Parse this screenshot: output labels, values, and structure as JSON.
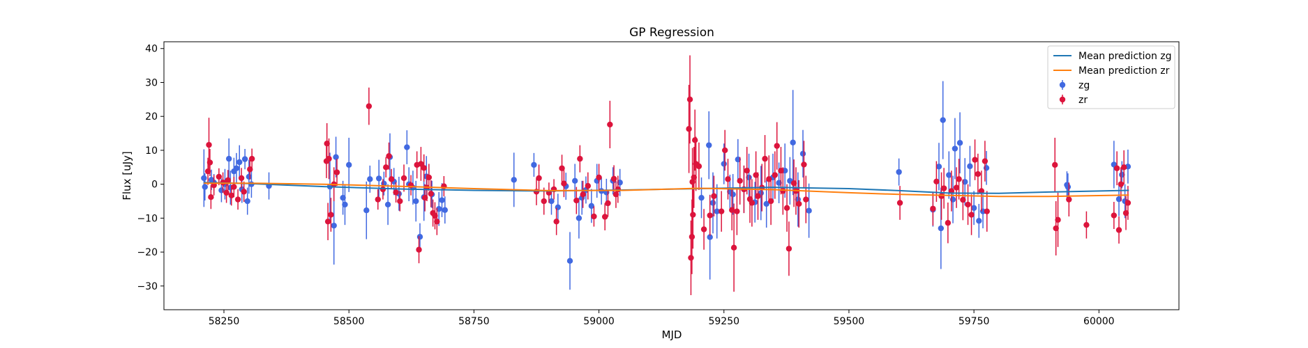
{
  "chart_data": {
    "type": "scatter",
    "title": "GP Regression",
    "xlabel": "MJD",
    "ylabel": "Flux [uJy]",
    "xlim": [
      58130,
      60160
    ],
    "ylim": [
      -37,
      42
    ],
    "xticks": [
      58250,
      58500,
      58750,
      59000,
      59250,
      59500,
      59750,
      60000
    ],
    "xtick_labels": [
      "58250",
      "58500",
      "58750",
      "59000",
      "59250",
      "59500",
      "59750",
      "60000"
    ],
    "yticks": [
      -30,
      -20,
      -10,
      0,
      10,
      20,
      30,
      40
    ],
    "ytick_labels": [
      "−30",
      "−20",
      "−10",
      "0",
      "10",
      "20",
      "30",
      "40"
    ],
    "grid": false,
    "legend_position": "top-right",
    "legend": [
      {
        "label": "Mean prediction zg",
        "kind": "line",
        "color": "#1f77b4"
      },
      {
        "label": "Mean prediction zr",
        "kind": "line",
        "color": "#ff7f0e"
      },
      {
        "label": "zg",
        "kind": "errorbar",
        "color": "#4169e1"
      },
      {
        "label": "zr",
        "kind": "errorbar",
        "color": "#dc143c"
      }
    ],
    "lines": [
      {
        "name": "Mean prediction zg",
        "color": "#1f77b4",
        "x": [
          58210,
          58300,
          58450,
          58600,
          58750,
          58900,
          59050,
          59200,
          59350,
          59500,
          59600,
          59700,
          59800,
          59900,
          60060
        ],
        "y": [
          0.5,
          0.2,
          -0.7,
          -1.4,
          -1.8,
          -2.0,
          -1.7,
          -1.3,
          -0.9,
          -1.3,
          -1.9,
          -2.6,
          -2.7,
          -2.3,
          -1.8
        ]
      },
      {
        "name": "Mean prediction zr",
        "color": "#ff7f0e",
        "x": [
          58210,
          58300,
          58450,
          58600,
          58750,
          58900,
          59050,
          59200,
          59350,
          59500,
          59600,
          59700,
          59800,
          59900,
          60060
        ],
        "y": [
          0.3,
          0.3,
          0.0,
          -0.6,
          -1.3,
          -1.9,
          -1.8,
          -1.2,
          -1.6,
          -2.5,
          -3.0,
          -3.3,
          -3.6,
          -3.6,
          -3.2
        ]
      }
    ],
    "series": [
      {
        "name": "zg",
        "color": "#4169e1",
        "x": [
          58210,
          58212,
          58225,
          58230,
          58245,
          58252,
          58260,
          58263,
          58270,
          58275,
          58281,
          58286,
          58292,
          58297,
          58300,
          58305,
          58340,
          58462,
          58470,
          58474,
          58488,
          58492,
          58500,
          58535,
          58542,
          58560,
          58570,
          58578,
          58582,
          58590,
          58600,
          58616,
          58620,
          58628,
          58634,
          58642,
          58650,
          58655,
          58666,
          58680,
          58686,
          58692,
          58830,
          58870,
          58905,
          58918,
          58934,
          58942,
          58952,
          58960,
          58966,
          58974,
          58985,
          58996,
          59005,
          59015,
          59028,
          59042,
          59205,
          59220,
          59222,
          59228,
          59236,
          59250,
          59262,
          59268,
          59278,
          59290,
          59300,
          59312,
          59324,
          59335,
          59348,
          59360,
          59372,
          59382,
          59388,
          59398,
          59408,
          59420,
          59600,
          59668,
          59680,
          59684,
          59688,
          59700,
          59708,
          59712,
          59722,
          59732,
          59742,
          59750,
          59760,
          59768,
          59775,
          59936,
          59938,
          60030,
          60040,
          60046,
          60052,
          60058
        ],
        "y": [
          1.8,
          -0.8,
          1.3,
          0.5,
          -1.8,
          0.0,
          7.5,
          -1.0,
          3.8,
          4.7,
          6.5,
          -1.5,
          7.4,
          -5.0,
          2.2,
          0.0,
          -0.5,
          -0.7,
          -12.2,
          8.0,
          -4.0,
          -6.0,
          5.7,
          -7.7,
          1.5,
          1.7,
          0.2,
          -6.0,
          8.0,
          0.8,
          -2.8,
          10.9,
          0.0,
          -1.0,
          -5.0,
          -15.5,
          -3.8,
          2.3,
          -3.0,
          -7.3,
          -4.7,
          -7.6,
          1.3,
          5.7,
          -5.0,
          -6.8,
          -0.6,
          -22.6,
          1.0,
          -10.0,
          -4.0,
          -1.7,
          -6.4,
          1.0,
          -2.0,
          -2.4,
          1.0,
          0.5,
          -4.0,
          11.5,
          -15.6,
          -5.5,
          -8.0,
          6.0,
          -2.2,
          -3.0,
          7.3,
          -1.5,
          2.0,
          -5.3,
          -2.6,
          -5.8,
          2.0,
          0.4,
          4.0,
          1.0,
          12.3,
          -4.5,
          9.0,
          -7.8,
          3.6,
          -7.5,
          5.2,
          -13.0,
          18.9,
          2.7,
          -4.5,
          10.5,
          12.2,
          0.7,
          5.3,
          -7.0,
          -10.8,
          -8.0,
          4.8,
          -0.2,
          -0.8,
          5.8,
          -4.4,
          2.8,
          -5.0,
          5.2
        ],
        "err": [
          8.5,
          4.0,
          3.0,
          2.5,
          3.5,
          4.5,
          6.0,
          5.0,
          4.0,
          4.5,
          5.0,
          4.0,
          3.0,
          4.0,
          5.0,
          4.0,
          4.0,
          10.0,
          11.5,
          6.0,
          5.0,
          6.0,
          8.0,
          8.5,
          4.0,
          5.5,
          3.5,
          6.0,
          7.0,
          4.0,
          5.0,
          5.0,
          5.0,
          5.0,
          6.0,
          4.0,
          7.0,
          6.0,
          4.0,
          5.0,
          5.0,
          4.0,
          8.0,
          3.5,
          4.0,
          4.0,
          4.0,
          8.5,
          5.0,
          6.0,
          5.0,
          4.0,
          5.0,
          5.0,
          4.0,
          4.0,
          4.0,
          4.0,
          6.0,
          10.0,
          12.5,
          9.0,
          8.0,
          6.0,
          5.0,
          6.0,
          6.0,
          7.0,
          7.0,
          6.0,
          8.0,
          7.0,
          7.0,
          6.0,
          8.0,
          7.0,
          15.5,
          8.0,
          7.0,
          8.0,
          4.0,
          5.0,
          7.0,
          12.0,
          11.5,
          7.0,
          7.0,
          9.0,
          9.0,
          7.0,
          6.0,
          5.0,
          5.0,
          5.0,
          5.0,
          4.0,
          4.0,
          7.0,
          5.0,
          4.0,
          5.0,
          5.0
        ]
      },
      {
        "name": "zr",
        "color": "#dc143c",
        "x": [
          58218,
          58220,
          58222,
          58224,
          58230,
          58240,
          58248,
          58255,
          58258,
          58265,
          58270,
          58278,
          58285,
          58290,
          58302,
          58306,
          58455,
          58456,
          58458,
          58460,
          58464,
          58470,
          58476,
          58540,
          58558,
          58568,
          58574,
          58580,
          58585,
          58594,
          58602,
          58610,
          58624,
          58636,
          58640,
          58644,
          58650,
          58652,
          58656,
          58660,
          58664,
          58668,
          58672,
          58676,
          58690,
          58875,
          58880,
          58890,
          58900,
          58910,
          58915,
          58926,
          58930,
          58955,
          58962,
          58968,
          58978,
          58990,
          59000,
          59012,
          59018,
          59022,
          59030,
          59034,
          59038,
          59180,
          59182,
          59184,
          59186,
          59187,
          59188,
          59190,
          59192,
          59194,
          59200,
          59210,
          59222,
          59230,
          59245,
          59252,
          59258,
          59266,
          59270,
          59276,
          59282,
          59290,
          59296,
          59302,
          59306,
          59314,
          59318,
          59326,
          59332,
          59340,
          59344,
          59352,
          59356,
          59364,
          59368,
          59376,
          59380,
          59390,
          59394,
          59400,
          59410,
          59414,
          59602,
          59668,
          59675,
          59685,
          59690,
          59698,
          59705,
          59715,
          59720,
          59728,
          59738,
          59745,
          59752,
          59758,
          59765,
          59772,
          59776,
          59912,
          59914,
          59918,
          59940,
          59975,
          60030,
          60036,
          60040,
          60044,
          60050,
          60054,
          60058
        ],
        "y": [
          3.8,
          11.6,
          6.4,
          -3.8,
          -0.3,
          2.2,
          0.5,
          -2.5,
          1.2,
          -3.3,
          -0.8,
          -4.5,
          1.8,
          -2.2,
          4.4,
          7.5,
          6.8,
          12.0,
          -11.0,
          7.5,
          -9.0,
          0.0,
          3.5,
          23.0,
          -4.5,
          -1.5,
          5.0,
          8.3,
          1.5,
          -2.4,
          -5.0,
          1.8,
          -0.3,
          5.7,
          -19.3,
          6.0,
          4.8,
          -4.0,
          -1.0,
          2.0,
          -2.8,
          -8.5,
          -9.3,
          -11.0,
          -0.6,
          -2.2,
          1.8,
          -5.0,
          -2.5,
          -1.5,
          -11.0,
          4.7,
          0.2,
          -4.8,
          7.5,
          -3.0,
          -0.5,
          -9.5,
          2.0,
          -9.6,
          -5.6,
          17.6,
          1.6,
          -3.0,
          -1.5,
          16.3,
          25.0,
          -21.7,
          -15.5,
          0.7,
          -9.0,
          2.0,
          13.0,
          6.0,
          5.3,
          -13.3,
          -9.2,
          -3.5,
          -8.0,
          10.0,
          1.5,
          -7.6,
          -18.7,
          -8.0,
          1.0,
          -1.5,
          4.0,
          -4.4,
          -5.5,
          2.7,
          -3.5,
          -1.0,
          7.5,
          1.5,
          -5.0,
          2.7,
          11.3,
          4.0,
          -2.0,
          -7.0,
          -19.0,
          0.3,
          -2.0,
          -5.8,
          5.8,
          -4.5,
          -5.5,
          -7.2,
          0.8,
          -3.5,
          -1.2,
          -11.4,
          -2.0,
          -1.0,
          1.5,
          -4.6,
          -6.0,
          -9.0,
          7.2,
          3.0,
          -2.0,
          6.8,
          -8.0,
          5.7,
          -13.0,
          -10.5,
          -4.5,
          -12.0,
          -9.2,
          4.7,
          -13.5,
          0.0,
          5.0,
          -8.5,
          -5.5
        ],
        "err": [
          4.0,
          8.0,
          4.0,
          3.5,
          3.0,
          2.5,
          3.0,
          3.0,
          3.0,
          3.0,
          3.0,
          3.0,
          3.0,
          3.0,
          3.0,
          3.0,
          5.0,
          6.0,
          5.5,
          6.0,
          5.0,
          5.0,
          4.0,
          5.5,
          3.0,
          3.0,
          3.0,
          4.0,
          3.0,
          3.0,
          3.0,
          4.0,
          3.0,
          4.0,
          4.0,
          5.0,
          4.0,
          4.0,
          4.0,
          4.0,
          4.0,
          4.0,
          4.0,
          4.0,
          3.0,
          4.0,
          4.0,
          4.0,
          3.0,
          3.0,
          4.0,
          4.0,
          4.0,
          4.0,
          4.0,
          4.0,
          4.0,
          3.0,
          4.0,
          4.0,
          4.0,
          7.0,
          4.0,
          4.0,
          4.0,
          13.0,
          13.0,
          11.0,
          11.0,
          10.0,
          10.0,
          9.0,
          9.0,
          8.0,
          7.0,
          6.0,
          6.0,
          6.0,
          6.0,
          6.0,
          6.0,
          6.0,
          13.0,
          7.0,
          7.0,
          7.0,
          7.0,
          7.0,
          7.0,
          7.0,
          7.0,
          7.0,
          7.0,
          7.0,
          7.0,
          7.0,
          7.0,
          7.0,
          7.0,
          7.0,
          8.0,
          7.0,
          7.0,
          7.0,
          7.0,
          7.0,
          5.0,
          5.0,
          6.0,
          7.0,
          6.0,
          6.0,
          6.0,
          6.0,
          6.0,
          6.0,
          6.0,
          6.0,
          6.0,
          6.0,
          6.0,
          6.0,
          6.0,
          8.0,
          8.0,
          8.0,
          5.0,
          4.0,
          4.0,
          5.0,
          4.0,
          5.0,
          5.0,
          5.0,
          5.0
        ]
      }
    ]
  }
}
